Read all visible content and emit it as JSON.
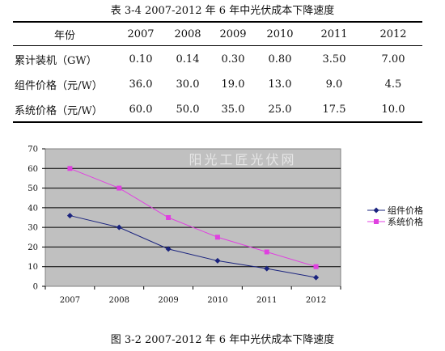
{
  "table": {
    "title": "表 3-4    2007-2012 年 6 年中光伏成本下降速度",
    "header_label": "年份",
    "years": [
      "2007",
      "2008",
      "2009",
      "2010",
      "2011",
      "2012"
    ],
    "rows": [
      {
        "label": "累计装机（GW）",
        "values": [
          "0.10",
          "0.14",
          "0.30",
          "0.80",
          "3.50",
          "7.00"
        ]
      },
      {
        "label": "组件价格（元/W）",
        "values": [
          "36.0",
          "30.0",
          "19.0",
          "13.0",
          "9.0",
          "4.5"
        ]
      },
      {
        "label": "系统价格（元/W）",
        "values": [
          "60.0",
          "50.0",
          "35.0",
          "25.0",
          "17.5",
          "10.0"
        ]
      }
    ]
  },
  "chart_data": {
    "type": "line",
    "categories": [
      "2007",
      "2008",
      "2009",
      "2010",
      "2011",
      "2012"
    ],
    "series": [
      {
        "name": "组件价格",
        "values": [
          36,
          30,
          19,
          13,
          9,
          4.5
        ],
        "color": "#1a237e",
        "marker": "diamond"
      },
      {
        "name": "系统价格",
        "values": [
          60,
          50,
          35,
          25,
          17.5,
          10
        ],
        "color": "#e040e0",
        "marker": "square"
      }
    ],
    "ylim": [
      0,
      70
    ],
    "yticks": [
      "0",
      "10",
      "20",
      "30",
      "40",
      "50",
      "60",
      "70"
    ],
    "grid": true,
    "legend": "right",
    "plot_background": "#c0c0c0",
    "title": "",
    "xlabel": "",
    "ylabel": ""
  },
  "watermark": "阳光工匠光伏网",
  "caption": "图 3-2    2007-2012 年 6 年中光伏成本下降速度"
}
